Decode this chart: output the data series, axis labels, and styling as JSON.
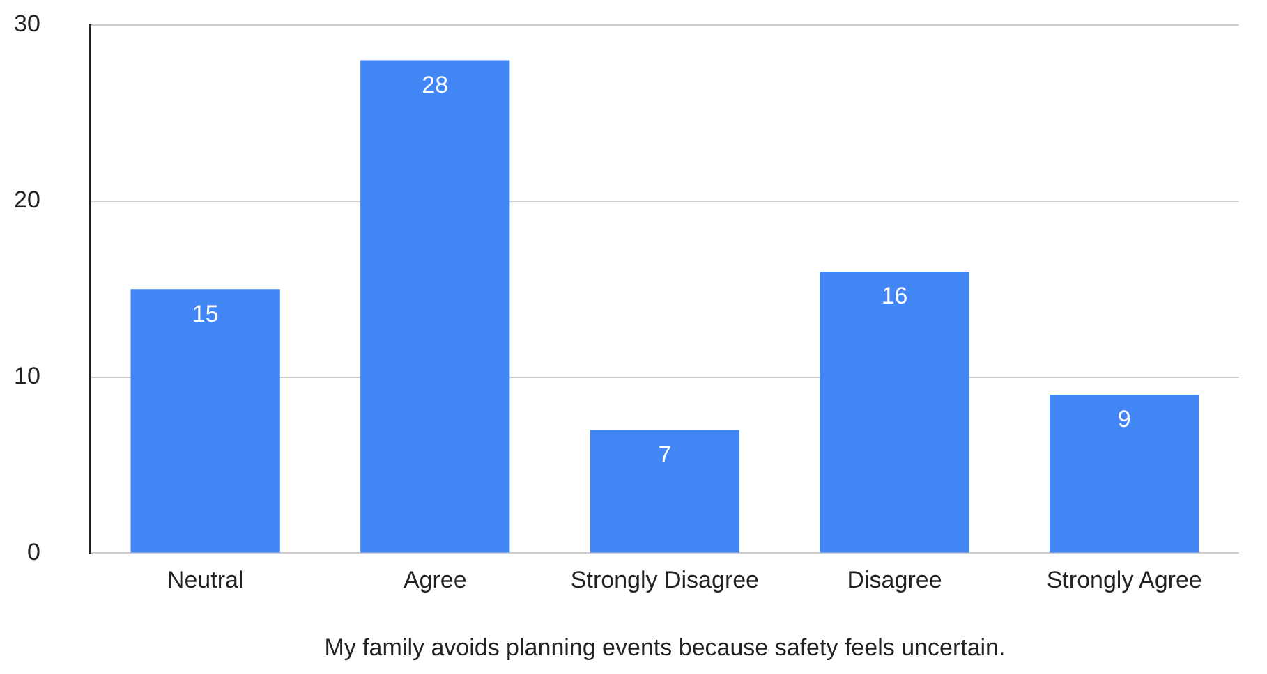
{
  "chart_data": {
    "type": "bar",
    "xlabel": "My family avoids planning events because safety feels uncertain.",
    "categories": [
      "Neutral",
      "Agree",
      "Strongly Disagree",
      "Disagree",
      "Strongly Agree"
    ],
    "values": [
      15,
      28,
      7,
      16,
      9
    ],
    "color": "#4285f4",
    "ylim": [
      0,
      30
    ],
    "yticks": [
      0,
      10,
      20,
      30
    ],
    "grid": "y",
    "legend": false,
    "data_labels": true
  }
}
